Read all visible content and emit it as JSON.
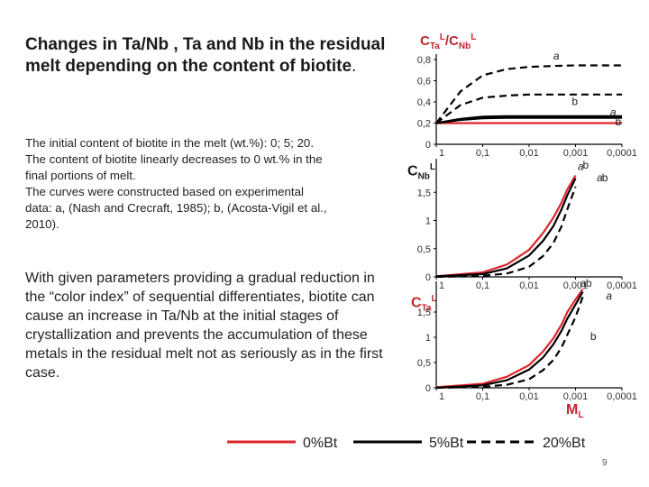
{
  "slide": {
    "title": "Changes in Ta/Nb , Ta and Nb in the residual melt depending on the content of biotite",
    "title_dot": ".",
    "para1": [
      "The initial content of biotite in the melt (wt.%): 0;  5;  20.",
      "The content of biotite linearly decreases to 0 wt.% in the",
      "final portions of melt.",
      "The curves were constructed based on experimental",
      "data: a, (Nash and Crecraft, 1985); b, (Acosta-Vigil et al.,",
      "2010)."
    ],
    "para2": "With given parameters providing a gradual reduction in the “color index” of sequential differentiates, biotite can cause an increase in Ta/Nb at the initial stages of crystallization and prevents the accumulation of these metals in the residual melt not as seriously as in the first case.",
    "page_number": "9"
  },
  "chart_labels": {
    "panel1_ylabel": {
      "main": "C",
      "sub1": "Ta",
      "sup1": "L",
      "slash": "/C",
      "sub2": "Nb",
      "sup2": "L"
    },
    "panel2_ylabel": {
      "main": "C",
      "sub": "Nb",
      "sup": "L"
    },
    "panel3_ylabel": {
      "main": "C",
      "sub": "Ta",
      "sup": "L"
    },
    "xlabel": {
      "main": "M",
      "sub": "L"
    }
  },
  "colors": {
    "red": "#e0242c",
    "black": "#000000",
    "axis": "#000000",
    "label": "#c0262c"
  },
  "chart_data": [
    {
      "type": "line",
      "title": "",
      "ylabel": "C_Ta^L/C_Nb^L",
      "x_ticks": [
        "1",
        "0,1",
        "0,01",
        "0,001",
        "0,0001"
      ],
      "x": [
        1,
        0.3,
        0.1,
        0.03,
        0.01,
        0.003,
        0.001,
        0.0003,
        0.0001
      ],
      "ylim": [
        0,
        0.8
      ],
      "y_ticks": [
        "0",
        "0,2",
        "0,4",
        "0,6",
        "0,8"
      ],
      "y_tick_values": [
        0,
        0.2,
        0.4,
        0.6,
        0.8
      ],
      "series": [
        {
          "name": "0%Bt",
          "color": "red",
          "dash": "solid",
          "values": [
            0.2,
            0.2,
            0.2,
            0.2,
            0.2,
            0.2,
            0.2,
            0.2,
            0.2
          ]
        },
        {
          "name": "5%Bt a",
          "color": "black",
          "dash": "solid",
          "values": [
            0.2,
            0.24,
            0.26,
            0.265,
            0.265,
            0.265,
            0.265,
            0.265,
            0.265
          ]
        },
        {
          "name": "5%Bt b",
          "color": "black",
          "dash": "solid",
          "values": [
            0.2,
            0.23,
            0.245,
            0.25,
            0.25,
            0.25,
            0.25,
            0.25,
            0.25
          ]
        },
        {
          "name": "20%Bt a",
          "color": "black",
          "dash": "dashed",
          "values": [
            0.2,
            0.5,
            0.65,
            0.71,
            0.73,
            0.74,
            0.745,
            0.745,
            0.745
          ]
        },
        {
          "name": "20%Bt b",
          "color": "black",
          "dash": "dashed",
          "values": [
            0.2,
            0.37,
            0.44,
            0.46,
            0.47,
            0.47,
            0.47,
            0.47,
            0.47
          ]
        }
      ],
      "annotations": [
        {
          "text": "a",
          "x": 0.003,
          "y": 0.8
        },
        {
          "text": "b",
          "x": 0.0012,
          "y": 0.37
        },
        {
          "text": "a",
          "x": 0.00018,
          "y": 0.27
        },
        {
          "text": "b",
          "x": 0.00014,
          "y": 0.18
        }
      ]
    },
    {
      "type": "line",
      "title": "",
      "ylabel": "C_Nb^L",
      "x_ticks": [
        "1",
        "0,1",
        "0,01",
        "0,001",
        "0,0001"
      ],
      "x": [
        1,
        0.1,
        0.03,
        0.01,
        0.005,
        0.003,
        0.002,
        0.0015,
        0.001
      ],
      "ylim": [
        0,
        2.0
      ],
      "y_ticks": [
        "0",
        "0,5",
        "1",
        "1,5"
      ],
      "y_tick_values": [
        0,
        0.5,
        1,
        1.5
      ],
      "series": [
        {
          "name": "0%Bt",
          "color": "red",
          "dash": "solid",
          "values": [
            0.01,
            0.08,
            0.22,
            0.48,
            0.78,
            1.05,
            1.32,
            1.55,
            1.8
          ]
        },
        {
          "name": "5%Bt",
          "color": "black",
          "dash": "solid",
          "values": [
            0.01,
            0.05,
            0.15,
            0.38,
            0.64,
            0.9,
            1.2,
            1.45,
            1.75
          ]
        },
        {
          "name": "20%Bt",
          "color": "black",
          "dash": "dashed",
          "values": [
            0.0,
            0.02,
            0.06,
            0.18,
            0.37,
            0.6,
            0.9,
            1.2,
            1.6
          ]
        }
      ],
      "annotations": [
        {
          "text": "a",
          "x": 0.0009,
          "y": 1.9
        },
        {
          "text": "b",
          "x": 0.0007,
          "y": 1.92
        },
        {
          "text": "a",
          "x": 0.00035,
          "y": 1.7
        },
        {
          "text": "b",
          "x": 0.00027,
          "y": 1.7
        }
      ]
    },
    {
      "type": "line",
      "title": "",
      "ylabel": "C_Ta^L",
      "xlabel": "M_L",
      "x_ticks": [
        "1",
        "0,1",
        "0,01",
        "0,001",
        "0,0001"
      ],
      "x": [
        1,
        0.1,
        0.03,
        0.01,
        0.005,
        0.003,
        0.002,
        0.0015,
        0.001,
        0.0007
      ],
      "ylim": [
        0,
        2.0
      ],
      "y_ticks": [
        "0",
        "0,5",
        "1",
        "1,5"
      ],
      "y_tick_values": [
        0,
        0.5,
        1,
        1.5
      ],
      "series": [
        {
          "name": "0%Bt",
          "color": "red",
          "dash": "solid",
          "values": [
            0.01,
            0.08,
            0.22,
            0.45,
            0.72,
            0.98,
            1.25,
            1.5,
            1.75,
            1.95
          ]
        },
        {
          "name": "5%Bt",
          "color": "black",
          "dash": "solid",
          "values": [
            0.0,
            0.05,
            0.15,
            0.36,
            0.6,
            0.86,
            1.13,
            1.37,
            1.65,
            1.9
          ]
        },
        {
          "name": "20%Bt",
          "color": "black",
          "dash": "dashed",
          "values": [
            0.0,
            0.02,
            0.06,
            0.17,
            0.35,
            0.55,
            0.8,
            1.05,
            1.4,
            1.8
          ]
        }
      ],
      "annotations": [
        {
          "text": "a",
          "x": 0.0008,
          "y": 2.0
        },
        {
          "text": "b",
          "x": 0.0006,
          "y": 2.0
        },
        {
          "text": "a",
          "x": 0.00022,
          "y": 1.75
        },
        {
          "text": "b",
          "x": 0.00048,
          "y": 0.95
        }
      ]
    }
  ],
  "legend": [
    {
      "label": "0%Bt",
      "color": "red",
      "dash": "solid"
    },
    {
      "label": "5%Bt",
      "color": "black",
      "dash": "solid"
    },
    {
      "label": "20%Bt",
      "color": "black",
      "dash": "dashed"
    }
  ]
}
